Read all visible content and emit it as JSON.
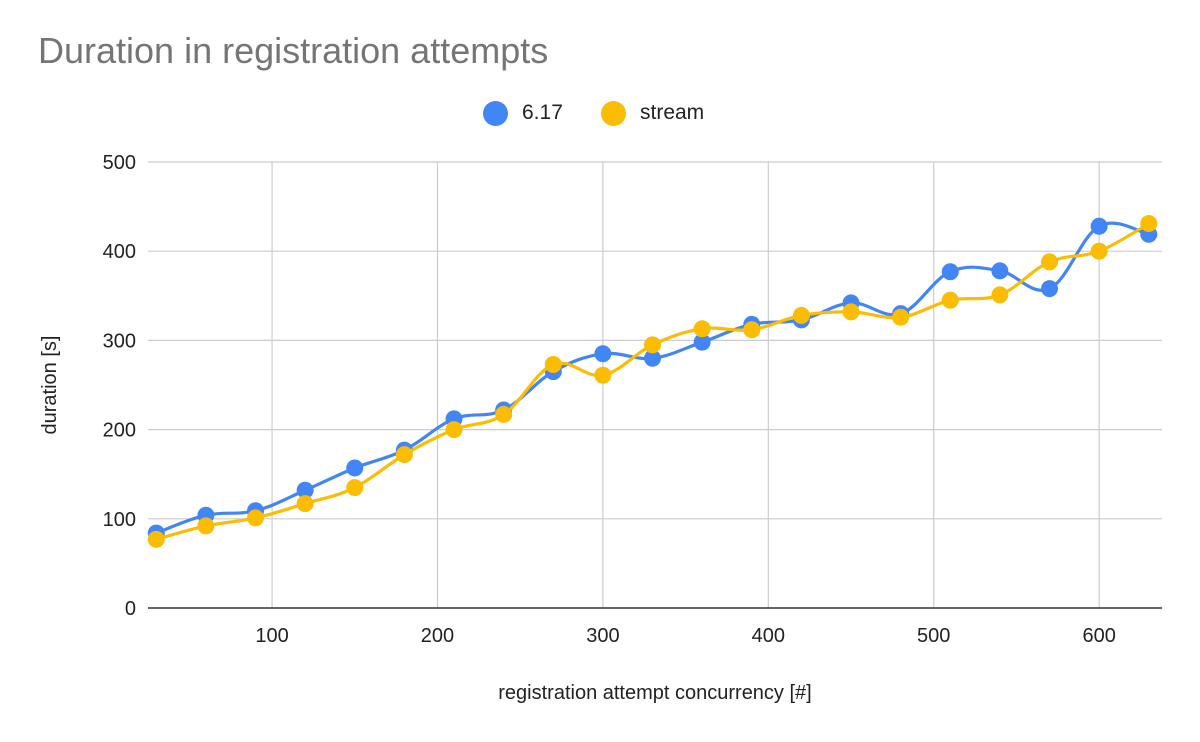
{
  "chart_data": {
    "type": "line",
    "title": "Duration in registration attempts",
    "xlabel": "registration attempt concurrency [#]",
    "ylabel": "duration [s]",
    "xlim": [
      25,
      638
    ],
    "ylim": [
      0,
      500
    ],
    "x_ticks": [
      100,
      200,
      300,
      400,
      500,
      600
    ],
    "y_ticks": [
      0,
      100,
      200,
      300,
      400,
      500
    ],
    "grid": true,
    "legend_position": "top",
    "smooth": true,
    "x": [
      30,
      60,
      90,
      120,
      150,
      180,
      210,
      240,
      270,
      300,
      330,
      360,
      390,
      420,
      450,
      480,
      510,
      540,
      570,
      600,
      630
    ],
    "series": [
      {
        "name": "6.17",
        "color": "#4285f4",
        "values": [
          84,
          104,
          109,
          132,
          157,
          177,
          212,
          222,
          265,
          285,
          280,
          298,
          318,
          323,
          342,
          330,
          377,
          378,
          358,
          428,
          419
        ]
      },
      {
        "name": "stream",
        "color": "#fbbc04",
        "values": [
          77,
          92,
          101,
          117,
          135,
          172,
          200,
          217,
          273,
          261,
          295,
          313,
          312,
          328,
          332,
          326,
          345,
          351,
          388,
          400,
          431
        ]
      }
    ]
  }
}
